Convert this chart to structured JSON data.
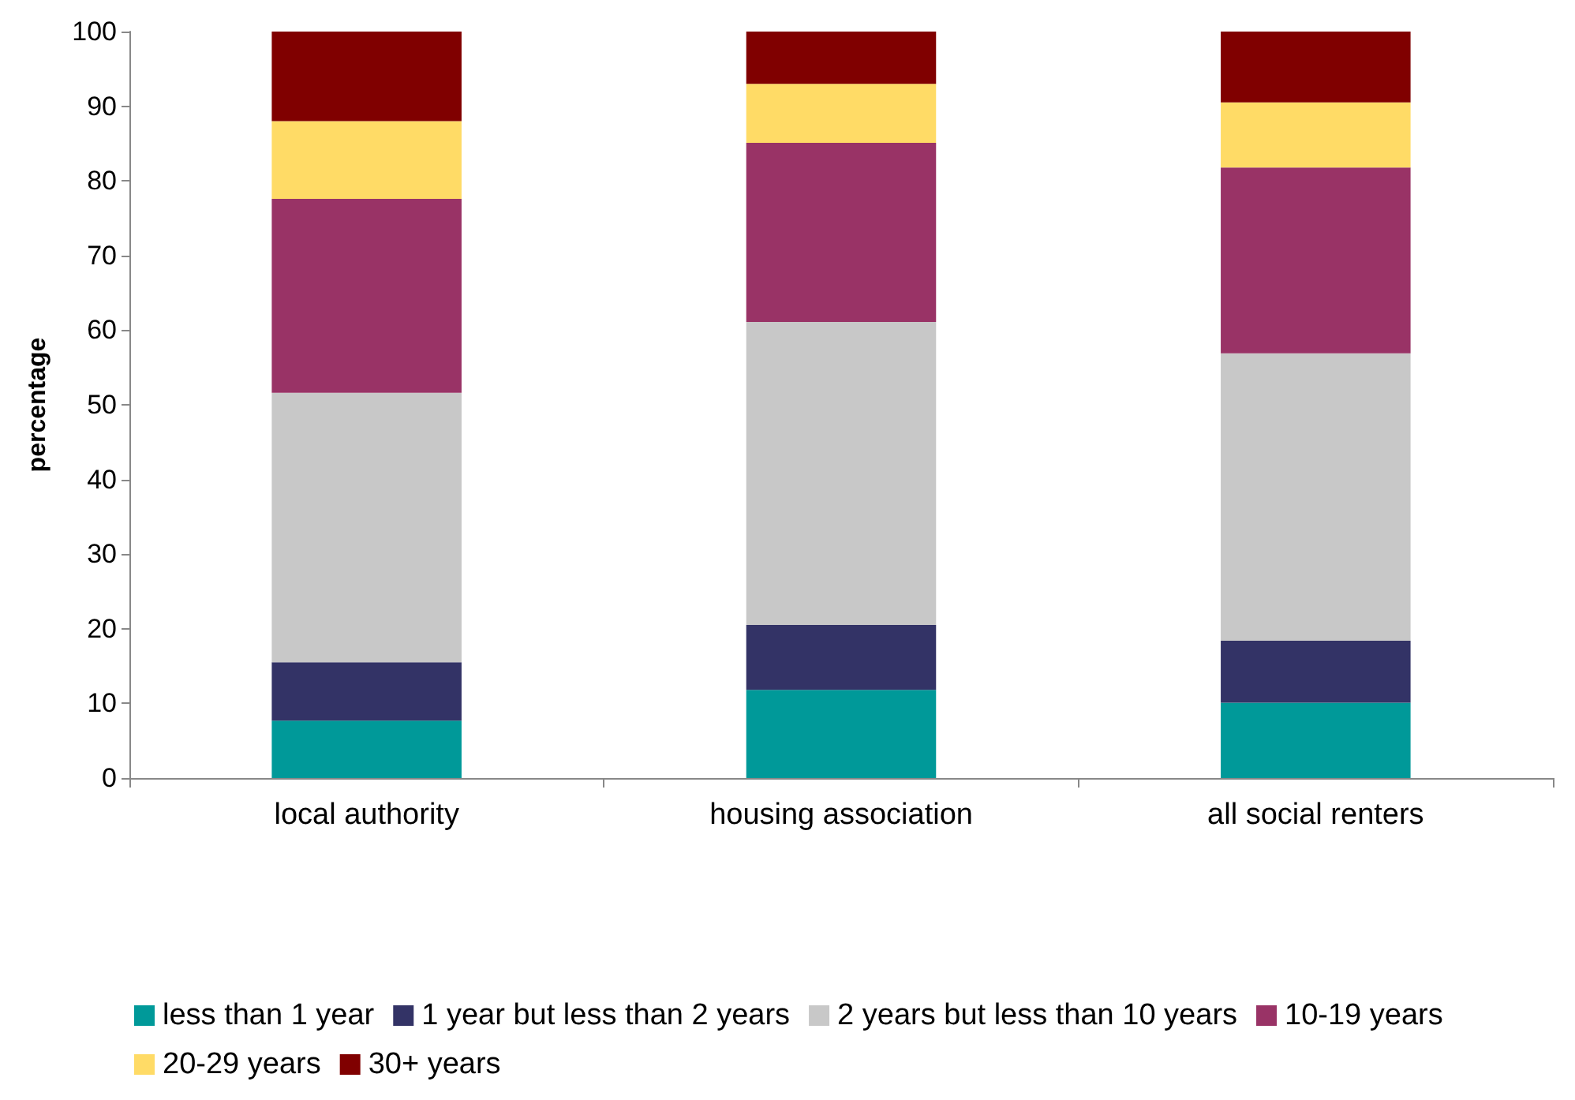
{
  "chart_data": {
    "type": "bar",
    "stacked": true,
    "ylabel": "percentage",
    "categories": [
      "local authority",
      "housing association",
      "all social renters"
    ],
    "series": [
      {
        "name": "less than 1 year",
        "color": "#009999",
        "values": [
          7.7,
          11.8,
          10.1
        ]
      },
      {
        "name": "1 year but less than 2 years",
        "color": "#333366",
        "values": [
          7.8,
          8.7,
          8.3
        ]
      },
      {
        "name": "2 years but less than 10 years",
        "color": "#c8c8c8",
        "values": [
          36.1,
          40.6,
          38.5
        ]
      },
      {
        "name": "10-19 years",
        "color": "#993366",
        "values": [
          26.0,
          24.0,
          24.9
        ]
      },
      {
        "name": "20-29 years",
        "color": "#ffdb66",
        "values": [
          10.4,
          7.9,
          8.7
        ]
      },
      {
        "name": "30+ years",
        "color": "#800000",
        "values": [
          12.0,
          7.0,
          9.5
        ]
      }
    ],
    "ylim": [
      0,
      100
    ],
    "yticks": [
      0,
      10,
      20,
      30,
      40,
      50,
      60,
      70,
      80,
      90,
      100
    ],
    "grid": false,
    "legend": "bottom"
  }
}
